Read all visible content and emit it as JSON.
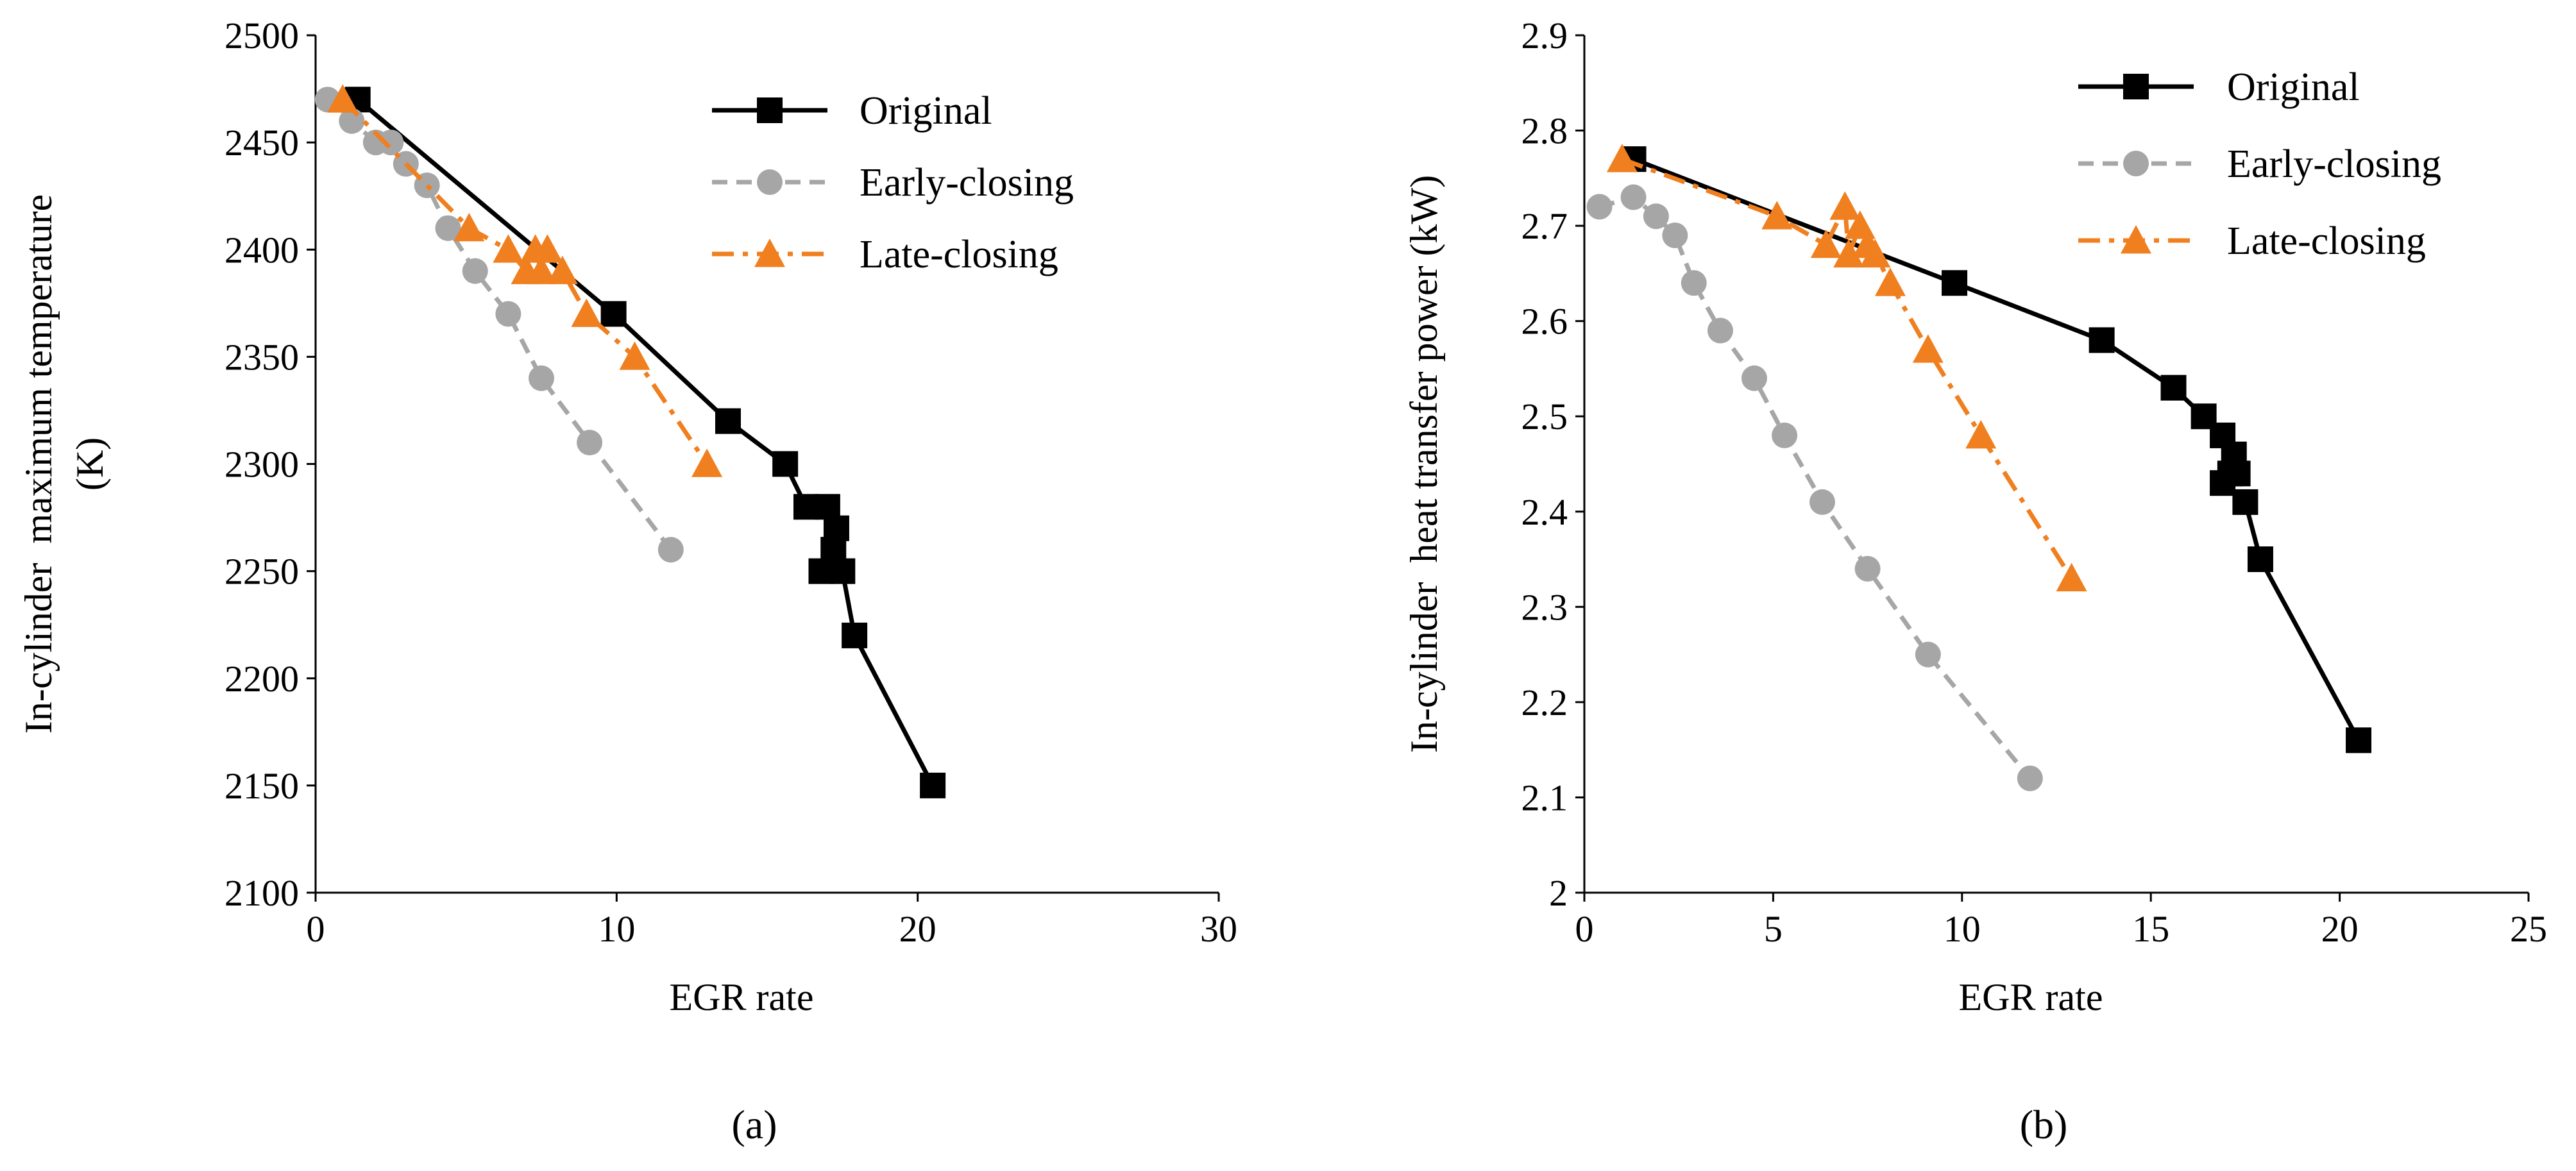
{
  "chart_data": [
    {
      "type": "line",
      "panel_label": "(a)",
      "xlabel": "EGR rate",
      "ylabel_lines": [
        "In-cylinder  maximum temperature",
        "(K)"
      ],
      "xlim": [
        0,
        30
      ],
      "ylim": [
        2100,
        2500
      ],
      "xticks": [
        "0",
        "10",
        "20",
        "30"
      ],
      "yticks": [
        "2100",
        "2150",
        "2200",
        "2250",
        "2300",
        "2350",
        "2400",
        "2450",
        "2500"
      ],
      "legend_position": "top-right",
      "series": [
        {
          "name": "Original",
          "style": "solid",
          "marker": "square",
          "color": "#000000",
          "x": [
            1.4,
            9.9,
            13.7,
            15.6,
            16.3,
            17.0,
            17.3,
            17.2,
            16.8,
            17.5,
            17.9,
            20.5
          ],
          "y": [
            2470,
            2370,
            2320,
            2300,
            2280,
            2280,
            2270,
            2260,
            2250,
            2250,
            2220,
            2150
          ]
        },
        {
          "name": "Early-closing",
          "style": "dashed",
          "marker": "circle",
          "color": "#a6a6a6",
          "x": [
            0.4,
            1.2,
            2.0,
            2.5,
            3.0,
            3.7,
            4.4,
            5.3,
            6.4,
            7.5,
            9.1,
            11.8
          ],
          "y": [
            2470,
            2460,
            2450,
            2450,
            2440,
            2430,
            2410,
            2390,
            2370,
            2340,
            2310,
            2260
          ]
        },
        {
          "name": "Late-closing",
          "style": "dashdot",
          "marker": "triangle",
          "color": "#f07f1f",
          "x": [
            0.9,
            5.1,
            6.4,
            7.0,
            7.3,
            7.5,
            7.7,
            8.2,
            9.0,
            10.6,
            13.0
          ],
          "y": [
            2470,
            2410,
            2400,
            2390,
            2400,
            2390,
            2400,
            2390,
            2370,
            2350,
            2300
          ]
        }
      ]
    },
    {
      "type": "line",
      "panel_label": "(b)",
      "xlabel": "EGR rate",
      "ylabel_lines": [
        "In-cylinder  heat transfer power (kW)"
      ],
      "xlim": [
        0,
        25
      ],
      "ylim": [
        2,
        2.9
      ],
      "xticks": [
        "0",
        "5",
        "10",
        "15",
        "20",
        "25"
      ],
      "yticks": [
        "2",
        "2.1",
        "2.2",
        "2.3",
        "2.4",
        "2.5",
        "2.6",
        "2.7",
        "2.8",
        "2.9"
      ],
      "legend_position": "top-right",
      "series": [
        {
          "name": "Original",
          "style": "solid",
          "marker": "square",
          "color": "#000000",
          "x": [
            1.3,
            9.8,
            13.7,
            15.6,
            16.4,
            16.9,
            17.2,
            17.3,
            17.1,
            16.9,
            17.5,
            17.9,
            20.5
          ],
          "y": [
            2.77,
            2.64,
            2.58,
            2.53,
            2.5,
            2.48,
            2.46,
            2.44,
            2.44,
            2.43,
            2.41,
            2.35,
            2.16
          ]
        },
        {
          "name": "Early-closing",
          "style": "dashed",
          "marker": "circle",
          "color": "#a6a6a6",
          "x": [
            0.4,
            1.3,
            1.9,
            2.4,
            2.9,
            3.6,
            4.5,
            5.3,
            6.3,
            7.5,
            9.1,
            11.8
          ],
          "y": [
            2.72,
            2.73,
            2.71,
            2.69,
            2.64,
            2.59,
            2.54,
            2.48,
            2.41,
            2.34,
            2.25,
            2.12
          ]
        },
        {
          "name": "Late-closing",
          "style": "dashdot",
          "marker": "triangle",
          "color": "#f07f1f",
          "x": [
            1.0,
            5.1,
            6.4,
            6.9,
            7.0,
            7.3,
            7.5,
            7.7,
            8.1,
            9.1,
            10.5,
            12.9
          ],
          "y": [
            2.77,
            2.71,
            2.68,
            2.72,
            2.67,
            2.7,
            2.68,
            2.67,
            2.64,
            2.57,
            2.48,
            2.33
          ]
        }
      ]
    }
  ]
}
